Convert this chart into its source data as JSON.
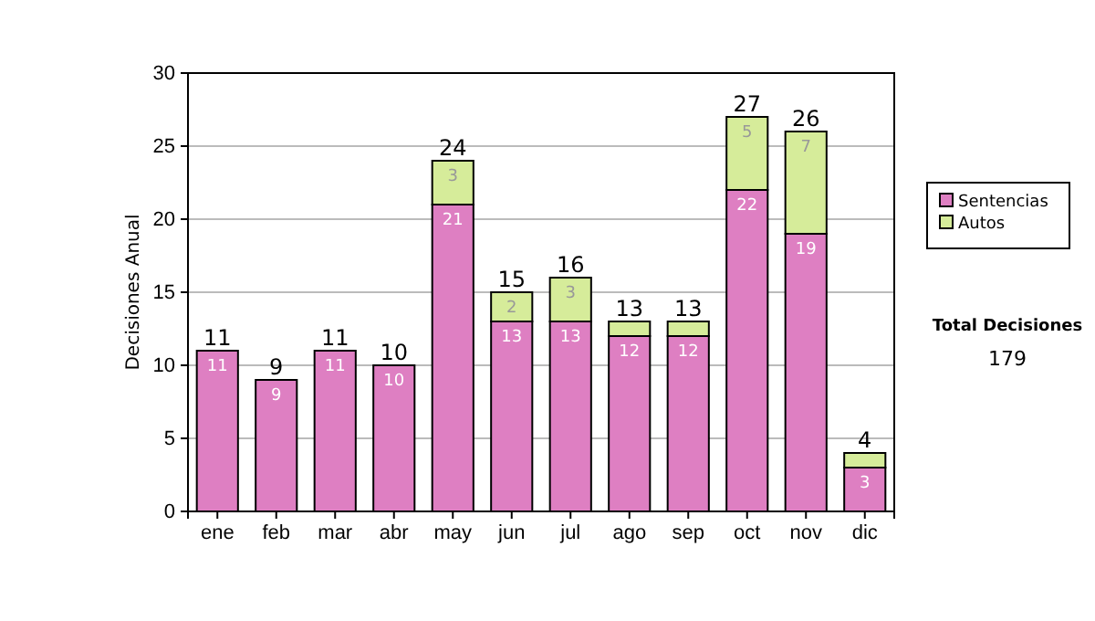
{
  "chart_data": {
    "type": "bar",
    "stacked": true,
    "ylabel": "Decisiones Anual",
    "categories": [
      "ene",
      "feb",
      "mar",
      "abr",
      "may",
      "jun",
      "jul",
      "ago",
      "sep",
      "oct",
      "nov",
      "dic"
    ],
    "series": [
      {
        "name": "Sentencias",
        "color": "#de7fc2",
        "values": [
          11,
          9,
          11,
          10,
          21,
          13,
          13,
          12,
          12,
          22,
          19,
          3
        ],
        "value_labels": [
          "11",
          "9",
          "11",
          "10",
          "21",
          "13",
          "13",
          "12",
          "12",
          "22",
          "19",
          "3"
        ]
      },
      {
        "name": "Autos",
        "color": "#d6ec9a",
        "values": [
          0,
          0,
          0,
          0,
          3,
          2,
          3,
          1,
          1,
          5,
          7,
          1
        ],
        "value_labels": [
          null,
          null,
          null,
          null,
          "3",
          "2",
          "3",
          null,
          null,
          "5",
          "7",
          null
        ]
      }
    ],
    "totals": [
      "11",
      "9",
      "11",
      "10",
      "24",
      "15",
      "16",
      "13",
      "13",
      "27",
      "26",
      "4"
    ],
    "ylim": [
      0,
      30
    ],
    "yticks": [
      0,
      5,
      10,
      15,
      20,
      25,
      30
    ],
    "grid": "y",
    "legend": "right",
    "annotations": [
      "Total Decisiones",
      "179"
    ]
  }
}
